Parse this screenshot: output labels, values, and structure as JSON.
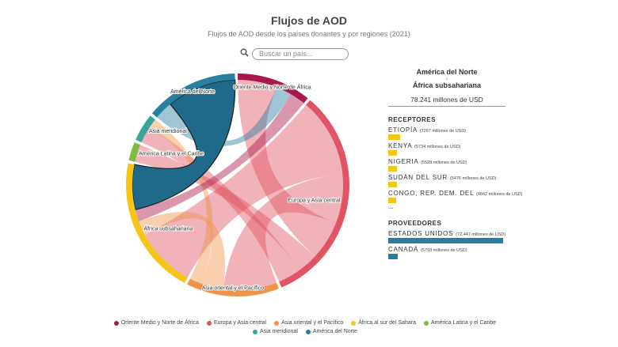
{
  "chart_data": {
    "type": "chord",
    "title": "Flujos de AOD",
    "subtitle": "Flujos de AOD desde los países donantes y por regiones (2021)",
    "search_placeholder": "Buscar un país...",
    "regions": [
      {
        "name": "Oriente Medio y Norte de África",
        "label": "Oriente Medio y Norte de África",
        "color": "#a8174e",
        "value": 40
      },
      {
        "name": "Europa y Asia central",
        "label": "Europa y Asia central",
        "color": "#e05464",
        "value": 120
      },
      {
        "name": "Asia oriental y el Pacífico",
        "label": "Asia oriental y el Pacífico",
        "color": "#f0924a",
        "value": 50
      },
      {
        "name": "África al sur del Sahara",
        "label": "África subsahariana",
        "color": "#f5c518",
        "value": 75
      },
      {
        "name": "América Latina y el Caribe",
        "label": "América Latina y el Caribe",
        "color": "#7dbb42",
        "value": 10
      },
      {
        "name": "Asia meridional",
        "label": "Asia meridional",
        "color": "#3aa39a",
        "value": 15
      },
      {
        "name": "América del Norte",
        "label": "América del Norte",
        "color": "#2a7fa0",
        "value": 50
      }
    ],
    "flows": [
      {
        "source": 1,
        "target": 3,
        "value": 40
      },
      {
        "source": 1,
        "target": 2,
        "value": 25
      },
      {
        "source": 1,
        "target": 0,
        "value": 20
      },
      {
        "source": 1,
        "target": 4,
        "value": 10
      },
      {
        "source": 1,
        "target": 5,
        "value": 12
      },
      {
        "source": 6,
        "target": 0,
        "value": 8
      },
      {
        "source": 2,
        "target": 3,
        "value": 10
      },
      {
        "source": 2,
        "target": 5,
        "value": 6
      },
      {
        "source": 0,
        "target": 3,
        "value": 8
      },
      {
        "source": 6,
        "target": 3,
        "value": 30
      }
    ],
    "highlight": 9
  },
  "panel": {
    "from": "América del Norte",
    "arrow": "↓",
    "to": "África subsahariana",
    "total": "78.241 millones de USD",
    "receivers_title": "RECEPTORES",
    "receivers": [
      {
        "name": "ETIOPÍA",
        "label": "(7267 millones de USD)",
        "value": 7267
      },
      {
        "name": "KENYA",
        "label": "(5734 millones de USD)",
        "value": 5734
      },
      {
        "name": "NIGERIA",
        "label": "(5528 millones de USD)",
        "value": 5528
      },
      {
        "name": "SUDÁN DEL SUR",
        "label": "(5476 millones de USD)",
        "value": 5476
      },
      {
        "name": "CONGO, REP. DEM. DEL",
        "label": "(4842 millones de USD)",
        "value": 4842
      }
    ],
    "more": "...",
    "providers_title": "PROVEEDORES",
    "providers": [
      {
        "name": "ESTADOS UNIDOS",
        "label": "(72.447 millones de USD)",
        "value": 72447
      },
      {
        "name": "CANADÁ",
        "label": "(5793 millones de USD)",
        "value": 5793
      }
    ]
  }
}
